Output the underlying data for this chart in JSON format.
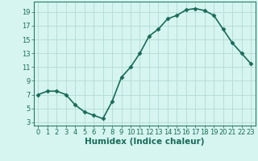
{
  "x": [
    0,
    1,
    2,
    3,
    4,
    5,
    6,
    7,
    8,
    9,
    10,
    11,
    12,
    13,
    14,
    15,
    16,
    17,
    18,
    19,
    20,
    21,
    22,
    23
  ],
  "y": [
    7,
    7.5,
    7.5,
    7,
    5.5,
    4.5,
    4,
    3.5,
    6,
    9.5,
    11,
    13,
    15.5,
    16.5,
    18,
    18.5,
    19.3,
    19.5,
    19.2,
    18.5,
    16.5,
    14.5,
    13,
    11.5
  ],
  "line_color": "#1a6b5a",
  "marker": "D",
  "marker_size": 2.5,
  "bg_color": "#d6f5f0",
  "grid_color": "#b8ddd8",
  "xlabel": "Humidex (Indice chaleur)",
  "xlabel_fontsize": 7.5,
  "yticks": [
    3,
    5,
    7,
    9,
    11,
    13,
    15,
    17,
    19
  ],
  "xticks": [
    0,
    1,
    2,
    3,
    4,
    5,
    6,
    7,
    8,
    9,
    10,
    11,
    12,
    13,
    14,
    15,
    16,
    17,
    18,
    19,
    20,
    21,
    22,
    23
  ],
  "ylim": [
    2.5,
    20.5
  ],
  "xlim": [
    -0.5,
    23.5
  ],
  "tick_fontsize": 6,
  "linewidth": 1.2
}
